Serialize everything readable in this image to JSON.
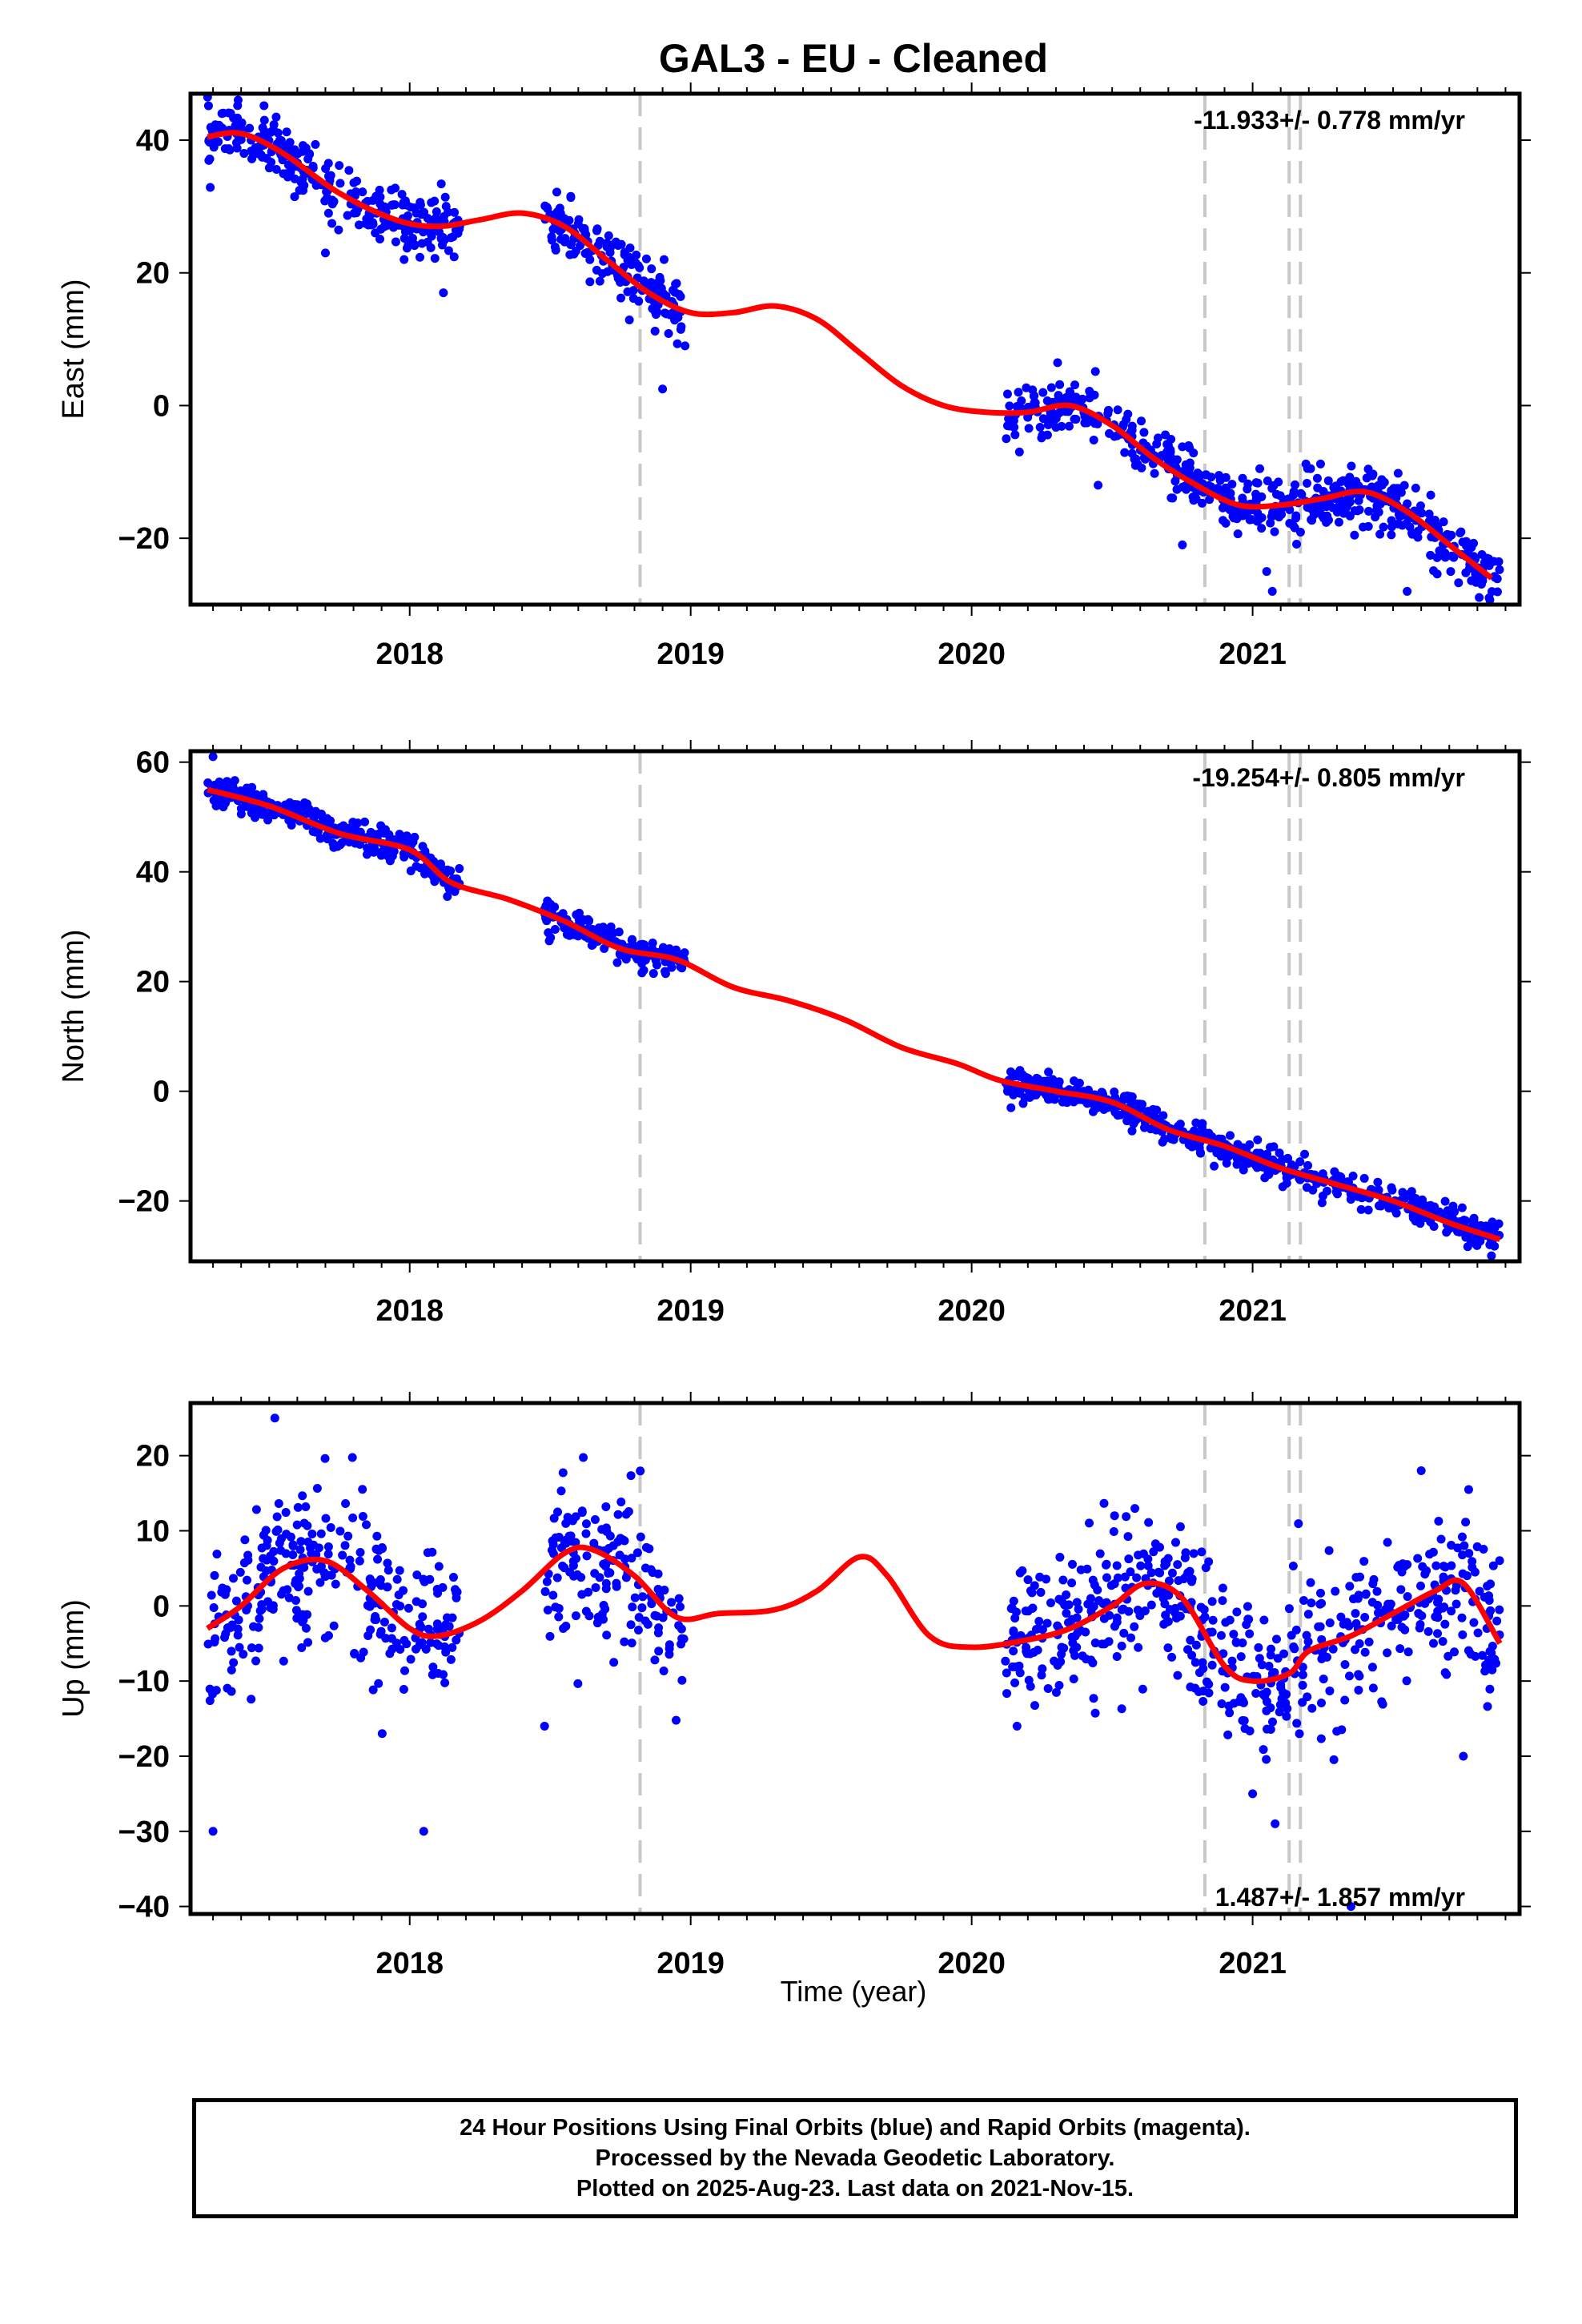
{
  "title": "GAL3  - EU - Cleaned",
  "xlabel": "Time (year)",
  "footer": {
    "line1": "24 Hour Positions Using Final Orbits (blue) and Rapid Orbits (magenta).",
    "line2": "Processed by the Nevada Geodetic Laboratory.",
    "line3": "Plotted on 2025-Aug-23. Last data on 2021-Nov-15."
  },
  "colors": {
    "data": "#0000ff",
    "fit": "#ff0000",
    "breaks": "#c8c8c8",
    "frame": "#000000"
  },
  "chart_data": [
    {
      "type": "scatter",
      "ylabel": "East (mm)",
      "ylim": [
        -30,
        47
      ],
      "yticks": [
        40,
        20,
        0,
        -20
      ],
      "xlim": [
        2017.22,
        2021.95
      ],
      "xticks": [
        2018,
        2019,
        2020,
        2021
      ],
      "rate_label": "-11.933+/- 0.778 mm/yr",
      "breaks": [
        2018.82,
        2020.83,
        2021.13,
        2021.17
      ],
      "fit": [
        [
          2017.28,
          40.5
        ],
        [
          2017.4,
          41
        ],
        [
          2017.55,
          38
        ],
        [
          2017.75,
          32
        ],
        [
          2017.95,
          28
        ],
        [
          2018.1,
          27
        ],
        [
          2018.25,
          28
        ],
        [
          2018.4,
          29
        ],
        [
          2018.55,
          27
        ],
        [
          2018.7,
          22
        ],
        [
          2018.85,
          17
        ],
        [
          2019.0,
          14
        ],
        [
          2019.15,
          14
        ],
        [
          2019.3,
          15
        ],
        [
          2019.45,
          13
        ],
        [
          2019.6,
          8
        ],
        [
          2019.75,
          3
        ],
        [
          2019.9,
          0
        ],
        [
          2020.05,
          -1
        ],
        [
          2020.2,
          -1
        ],
        [
          2020.35,
          0
        ],
        [
          2020.5,
          -3
        ],
        [
          2020.65,
          -8
        ],
        [
          2020.8,
          -12
        ],
        [
          2020.95,
          -15
        ],
        [
          2021.1,
          -15
        ],
        [
          2021.25,
          -14
        ],
        [
          2021.4,
          -13
        ],
        [
          2021.55,
          -16
        ],
        [
          2021.7,
          -21
        ],
        [
          2021.85,
          -26
        ]
      ],
      "segments": [
        [
          2017.28,
          2018.18
        ],
        [
          2018.48,
          2018.98
        ],
        [
          2020.12,
          2021.88
        ]
      ],
      "scatter_sd": 2.2,
      "outliers": [
        [
          2017.7,
          23
        ],
        [
          2017.98,
          22
        ],
        [
          2018.12,
          17
        ],
        [
          2018.98,
          9
        ],
        [
          2018.9,
          2.5
        ],
        [
          2020.17,
          -7
        ],
        [
          2020.45,
          -12
        ],
        [
          2020.75,
          -21
        ],
        [
          2021.05,
          -25
        ],
        [
          2021.07,
          -28
        ],
        [
          2021.55,
          -28
        ]
      ]
    },
    {
      "type": "scatter",
      "ylabel": "North (mm)",
      "ylim": [
        -31,
        62
      ],
      "yticks": [
        60,
        40,
        20,
        0,
        -20
      ],
      "xlim": [
        2017.22,
        2021.95
      ],
      "xticks": [
        2018,
        2019,
        2020,
        2021
      ],
      "rate_label": "-19.254+/- 0.805 mm/yr",
      "breaks": [
        2018.82,
        2020.83,
        2021.13,
        2021.17
      ],
      "fit": [
        [
          2017.28,
          55
        ],
        [
          2017.5,
          52
        ],
        [
          2017.75,
          47
        ],
        [
          2018.0,
          44
        ],
        [
          2018.15,
          38
        ],
        [
          2018.35,
          35
        ],
        [
          2018.55,
          31
        ],
        [
          2018.75,
          26
        ],
        [
          2018.95,
          24
        ],
        [
          2019.15,
          19
        ],
        [
          2019.35,
          16.5
        ],
        [
          2019.55,
          13
        ],
        [
          2019.75,
          8
        ],
        [
          2019.95,
          5
        ],
        [
          2020.1,
          2
        ],
        [
          2020.3,
          0
        ],
        [
          2020.5,
          -2
        ],
        [
          2020.7,
          -7
        ],
        [
          2020.9,
          -10
        ],
        [
          2021.1,
          -14
        ],
        [
          2021.3,
          -17
        ],
        [
          2021.5,
          -20
        ],
        [
          2021.7,
          -24
        ],
        [
          2021.88,
          -27
        ]
      ],
      "segments": [
        [
          2017.28,
          2018.18
        ],
        [
          2018.48,
          2018.98
        ],
        [
          2020.12,
          2021.88
        ]
      ],
      "scatter_sd": 1.4,
      "outliers": [
        [
          2017.3,
          61
        ],
        [
          2020.14,
          -3
        ],
        [
          2021.85,
          -30
        ]
      ]
    },
    {
      "type": "scatter",
      "ylabel": "Up (mm)",
      "ylim": [
        -41,
        27
      ],
      "yticks": [
        20,
        10,
        0,
        -10,
        -20,
        -30,
        -40
      ],
      "xlim": [
        2017.22,
        2021.95
      ],
      "xticks": [
        2018,
        2019,
        2020,
        2021
      ],
      "rate_label": "1.487+/- 1.857 mm/yr",
      "breaks": [
        2018.82,
        2020.83,
        2021.13,
        2021.17
      ],
      "fit": [
        [
          2017.28,
          -3
        ],
        [
          2017.4,
          0
        ],
        [
          2017.55,
          5
        ],
        [
          2017.7,
          6
        ],
        [
          2017.85,
          2
        ],
        [
          2018.0,
          -3
        ],
        [
          2018.1,
          -4
        ],
        [
          2018.25,
          -2
        ],
        [
          2018.4,
          2
        ],
        [
          2018.55,
          7
        ],
        [
          2018.65,
          7.5
        ],
        [
          2018.8,
          4
        ],
        [
          2018.95,
          -1.5
        ],
        [
          2019.1,
          -1
        ],
        [
          2019.3,
          -0.5
        ],
        [
          2019.45,
          2
        ],
        [
          2019.6,
          6.5
        ],
        [
          2019.7,
          4
        ],
        [
          2019.85,
          -4
        ],
        [
          2020.0,
          -5.5
        ],
        [
          2020.2,
          -4.5
        ],
        [
          2020.35,
          -3
        ],
        [
          2020.5,
          0
        ],
        [
          2020.62,
          3
        ],
        [
          2020.75,
          1
        ],
        [
          2020.9,
          -8
        ],
        [
          2021.0,
          -10
        ],
        [
          2021.13,
          -9
        ],
        [
          2021.2,
          -6
        ],
        [
          2021.35,
          -4
        ],
        [
          2021.5,
          -1
        ],
        [
          2021.65,
          2
        ],
        [
          2021.75,
          3
        ],
        [
          2021.88,
          -5
        ]
      ],
      "segments": [
        [
          2017.28,
          2018.18
        ],
        [
          2018.48,
          2018.98
        ],
        [
          2020.12,
          2021.88
        ]
      ],
      "scatter_sd": 5.2,
      "outliers": [
        [
          2017.3,
          -30
        ],
        [
          2017.52,
          25
        ],
        [
          2018.05,
          -30
        ],
        [
          2018.48,
          -16
        ],
        [
          2021.35,
          -40
        ],
        [
          2021.6,
          18
        ],
        [
          2021.75,
          -20
        ],
        [
          2021.0,
          -25
        ],
        [
          2021.08,
          -29
        ]
      ]
    }
  ]
}
